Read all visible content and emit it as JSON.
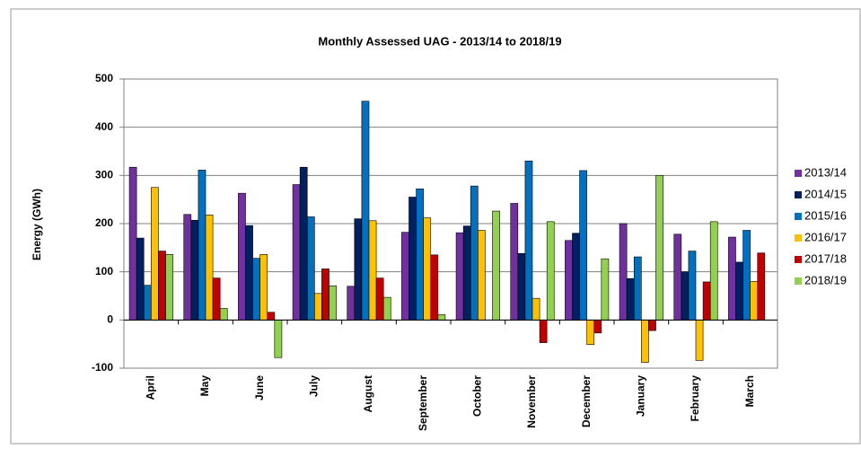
{
  "chart_data": {
    "type": "bar",
    "title": "Monthly Assessed UAG - 2013/14 to 2018/19",
    "ylabel": "Energy (GWh)",
    "categories": [
      "April",
      "May",
      "June",
      "July",
      "August",
      "September",
      "October",
      "November",
      "December",
      "January",
      "February",
      "March"
    ],
    "series": [
      {
        "name": "2013/14",
        "color": "#7030a0",
        "values": [
          317,
          219,
          263,
          281,
          70,
          182,
          181,
          242,
          165,
          200,
          178,
          172
        ]
      },
      {
        "name": "2014/15",
        "color": "#002060",
        "values": [
          170,
          207,
          196,
          317,
          210,
          255,
          195,
          138,
          180,
          86,
          100,
          120
        ]
      },
      {
        "name": "2015/16",
        "color": "#0070c0",
        "values": [
          72,
          311,
          128,
          214,
          454,
          272,
          278,
          330,
          310,
          131,
          143,
          186
        ]
      },
      {
        "name": "2016/17",
        "color": "#ffc000",
        "values": [
          275,
          218,
          136,
          55,
          206,
          212,
          186,
          45,
          -51,
          -88,
          -84,
          80
        ]
      },
      {
        "name": "2017/18",
        "color": "#c00000",
        "values": [
          143,
          87,
          16,
          106,
          87,
          135,
          0,
          -47,
          -27,
          -22,
          79,
          139
        ]
      },
      {
        "name": "2018/19",
        "color": "#92d050",
        "values": [
          136,
          24,
          -78,
          71,
          47,
          11,
          226,
          204,
          127,
          300,
          204,
          null
        ]
      }
    ],
    "ylim": [
      -100,
      500
    ],
    "yticks": [
      -100,
      0,
      100,
      200,
      300,
      400,
      500
    ],
    "grid": true,
    "legend": "right"
  }
}
